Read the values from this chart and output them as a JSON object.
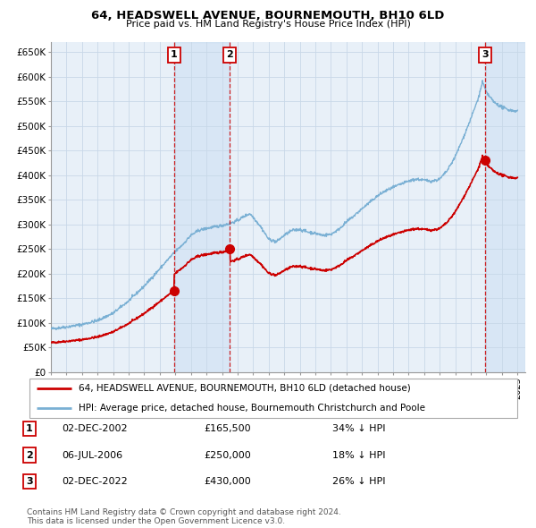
{
  "title": "64, HEADSWELL AVENUE, BOURNEMOUTH, BH10 6LD",
  "subtitle": "Price paid vs. HM Land Registry's House Price Index (HPI)",
  "ylabel_ticks": [
    "£0",
    "£50K",
    "£100K",
    "£150K",
    "£200K",
    "£250K",
    "£300K",
    "£350K",
    "£400K",
    "£450K",
    "£500K",
    "£550K",
    "£600K",
    "£650K"
  ],
  "ytick_values": [
    0,
    50000,
    100000,
    150000,
    200000,
    250000,
    300000,
    350000,
    400000,
    450000,
    500000,
    550000,
    600000,
    650000
  ],
  "xlim_start": 1995.0,
  "xlim_end": 2025.5,
  "ylim_min": 0,
  "ylim_max": 670000,
  "sales": [
    {
      "date_year": 2002.92,
      "price": 165500,
      "label": "1"
    },
    {
      "date_year": 2006.51,
      "price": 250000,
      "label": "2"
    },
    {
      "date_year": 2022.92,
      "price": 430000,
      "label": "3"
    }
  ],
  "sale_color": "#cc0000",
  "hpi_color": "#7ab0d4",
  "shade_color": "#ddeeff",
  "background_color": "#e8f0f8",
  "grid_color": "#c8d8e8",
  "legend_entries": [
    "64, HEADSWELL AVENUE, BOURNEMOUTH, BH10 6LD (detached house)",
    "HPI: Average price, detached house, Bournemouth Christchurch and Poole"
  ],
  "table_data": [
    {
      "num": "1",
      "date": "02-DEC-2002",
      "price": "£165,500",
      "note": "34% ↓ HPI"
    },
    {
      "num": "2",
      "date": "06-JUL-2006",
      "price": "£250,000",
      "note": "18% ↓ HPI"
    },
    {
      "num": "3",
      "date": "02-DEC-2022",
      "price": "£430,000",
      "note": "26% ↓ HPI"
    }
  ],
  "footer": "Contains HM Land Registry data © Crown copyright and database right 2024.\nThis data is licensed under the Open Government Licence v3.0.",
  "xtick_years": [
    1995,
    1996,
    1997,
    1998,
    1999,
    2000,
    2001,
    2002,
    2003,
    2004,
    2005,
    2006,
    2007,
    2008,
    2009,
    2010,
    2011,
    2012,
    2013,
    2014,
    2015,
    2016,
    2017,
    2018,
    2019,
    2020,
    2021,
    2022,
    2023,
    2024,
    2025
  ]
}
